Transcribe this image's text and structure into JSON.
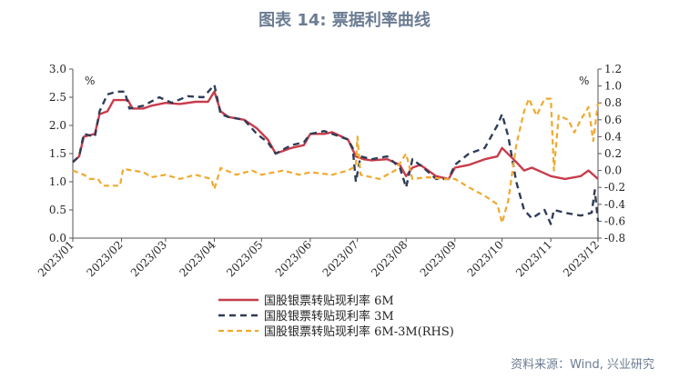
{
  "title": "图表 14: 票据利率曲线",
  "source": "资料来源：Wind, 兴业研究",
  "colors": {
    "m6": "#c83c4b",
    "m3": "#2f3d57",
    "spread": "#f0a92e",
    "axis": "#555555"
  },
  "chart_data": {
    "type": "line",
    "title": "图表 14: 票据利率曲线",
    "left_axis": {
      "unit_label": "%",
      "ylim": [
        0.0,
        3.0
      ],
      "ticks": [
        "0.0",
        "0.5",
        "1.0",
        "1.5",
        "2.0",
        "2.5",
        "3.0"
      ]
    },
    "right_axis": {
      "unit_label": "%",
      "ylim": [
        -0.8,
        1.2
      ],
      "ticks": [
        "-0.8",
        "-0.6",
        "-0.4",
        "-0.2",
        "0.0",
        "0.2",
        "0.4",
        "0.6",
        "0.8",
        "1.0",
        "1.2"
      ]
    },
    "x_ticks": [
      "2023/01",
      "2023/02",
      "2023/03",
      "2023/04",
      "2023/05",
      "2023/06",
      "2023/07",
      "2023/08",
      "2023/09",
      "2023/10",
      "2023/11",
      "2023/12"
    ],
    "x_range": [
      "2023/01/01",
      "2023/12/01"
    ],
    "grid": false,
    "legend_position": "bottom",
    "series": [
      {
        "name": "国股银票转贴现利率 6M",
        "axis": "left",
        "style": "solid",
        "points": [
          [
            "2023/01/01",
            1.35
          ],
          [
            "2023/01/05",
            1.45
          ],
          [
            "2023/01/08",
            1.8
          ],
          [
            "2023/01/15",
            1.85
          ],
          [
            "2023/01/18",
            2.2
          ],
          [
            "2023/01/23",
            2.25
          ],
          [
            "2023/01/27",
            2.45
          ],
          [
            "2023/02/05",
            2.45
          ],
          [
            "2023/02/08",
            2.3
          ],
          [
            "2023/02/15",
            2.3
          ],
          [
            "2023/02/20",
            2.35
          ],
          [
            "2023/03/01",
            2.4
          ],
          [
            "2023/03/10",
            2.38
          ],
          [
            "2023/03/20",
            2.42
          ],
          [
            "2023/03/28",
            2.42
          ],
          [
            "2023/04/01",
            2.6
          ],
          [
            "2023/04/05",
            2.25
          ],
          [
            "2023/04/10",
            2.15
          ],
          [
            "2023/04/20",
            2.1
          ],
          [
            "2023/04/28",
            1.95
          ],
          [
            "2023/05/05",
            1.75
          ],
          [
            "2023/05/10",
            1.5
          ],
          [
            "2023/05/20",
            1.6
          ],
          [
            "2023/05/28",
            1.65
          ],
          [
            "2023/06/01",
            1.85
          ],
          [
            "2023/06/10",
            1.85
          ],
          [
            "2023/06/15",
            1.88
          ],
          [
            "2023/06/25",
            1.75
          ],
          [
            "2023/06/30",
            1.45
          ],
          [
            "2023/07/05",
            1.4
          ],
          [
            "2023/07/10",
            1.38
          ],
          [
            "2023/07/20",
            1.4
          ],
          [
            "2023/07/28",
            1.3
          ],
          [
            "2023/08/01",
            1.1
          ],
          [
            "2023/08/05",
            1.25
          ],
          [
            "2023/08/10",
            1.3
          ],
          [
            "2023/08/20",
            1.1
          ],
          [
            "2023/08/28",
            1.05
          ],
          [
            "2023/09/01",
            1.25
          ],
          [
            "2023/09/10",
            1.3
          ],
          [
            "2023/09/20",
            1.4
          ],
          [
            "2023/09/28",
            1.45
          ],
          [
            "2023/10/01",
            1.6
          ],
          [
            "2023/10/10",
            1.35
          ],
          [
            "2023/10/15",
            1.2
          ],
          [
            "2023/10/20",
            1.25
          ],
          [
            "2023/10/28",
            1.15
          ],
          [
            "2023/11/01",
            1.1
          ],
          [
            "2023/11/10",
            1.05
          ],
          [
            "2023/11/20",
            1.1
          ],
          [
            "2023/11/25",
            1.2
          ],
          [
            "2023/12/01",
            1.05
          ]
        ]
      },
      {
        "name": "国股银票转贴现利率 3M",
        "axis": "left",
        "style": "dashed",
        "points": [
          [
            "2023/01/01",
            1.35
          ],
          [
            "2023/01/05",
            1.45
          ],
          [
            "2023/01/08",
            1.85
          ],
          [
            "2023/01/15",
            1.8
          ],
          [
            "2023/01/18",
            2.25
          ],
          [
            "2023/01/23",
            2.55
          ],
          [
            "2023/01/29",
            2.6
          ],
          [
            "2023/02/03",
            2.6
          ],
          [
            "2023/02/06",
            2.3
          ],
          [
            "2023/02/15",
            2.35
          ],
          [
            "2023/02/25",
            2.5
          ],
          [
            "2023/03/05",
            2.4
          ],
          [
            "2023/03/15",
            2.52
          ],
          [
            "2023/03/25",
            2.5
          ],
          [
            "2023/04/01",
            2.72
          ],
          [
            "2023/04/05",
            2.2
          ],
          [
            "2023/04/10",
            2.15
          ],
          [
            "2023/04/20",
            2.1
          ],
          [
            "2023/04/28",
            1.85
          ],
          [
            "2023/05/05",
            1.7
          ],
          [
            "2023/05/10",
            1.5
          ],
          [
            "2023/05/20",
            1.65
          ],
          [
            "2023/05/28",
            1.7
          ],
          [
            "2023/06/01",
            1.85
          ],
          [
            "2023/06/10",
            1.9
          ],
          [
            "2023/06/15",
            1.85
          ],
          [
            "2023/06/25",
            1.75
          ],
          [
            "2023/06/28",
            1.6
          ],
          [
            "2023/06/30",
            1.0
          ],
          [
            "2023/07/03",
            1.45
          ],
          [
            "2023/07/10",
            1.4
          ],
          [
            "2023/07/20",
            1.45
          ],
          [
            "2023/07/28",
            1.25
          ],
          [
            "2023/08/01",
            0.9
          ],
          [
            "2023/08/05",
            1.4
          ],
          [
            "2023/08/12",
            1.25
          ],
          [
            "2023/08/20",
            1.05
          ],
          [
            "2023/08/28",
            1.05
          ],
          [
            "2023/09/01",
            1.3
          ],
          [
            "2023/09/10",
            1.5
          ],
          [
            "2023/09/20",
            1.6
          ],
          [
            "2023/09/28",
            2.0
          ],
          [
            "2023/10/01",
            2.2
          ],
          [
            "2023/10/05",
            1.8
          ],
          [
            "2023/10/10",
            1.0
          ],
          [
            "2023/10/15",
            0.5
          ],
          [
            "2023/10/20",
            0.35
          ],
          [
            "2023/10/28",
            0.5
          ],
          [
            "2023/11/01",
            0.25
          ],
          [
            "2023/11/03",
            0.5
          ],
          [
            "2023/11/10",
            0.45
          ],
          [
            "2023/11/20",
            0.4
          ],
          [
            "2023/11/27",
            0.45
          ],
          [
            "2023/11/29",
            0.85
          ],
          [
            "2023/12/01",
            0.3
          ]
        ]
      },
      {
        "name": "国股银票转贴现利率 6M-3M(RHS)",
        "axis": "right",
        "style": "dashed",
        "points": [
          [
            "2023/01/01",
            0.0
          ],
          [
            "2023/01/08",
            -0.05
          ],
          [
            "2023/01/12",
            -0.1
          ],
          [
            "2023/01/17",
            -0.1
          ],
          [
            "2023/01/20",
            -0.18
          ],
          [
            "2023/01/31",
            -0.18
          ],
          [
            "2023/02/02",
            0.02
          ],
          [
            "2023/02/08",
            0.0
          ],
          [
            "2023/02/15",
            -0.02
          ],
          [
            "2023/02/20",
            -0.08
          ],
          [
            "2023/03/01",
            -0.05
          ],
          [
            "2023/03/10",
            -0.1
          ],
          [
            "2023/03/20",
            -0.05
          ],
          [
            "2023/03/30",
            -0.1
          ],
          [
            "2023/04/01",
            -0.22
          ],
          [
            "2023/04/05",
            0.03
          ],
          [
            "2023/04/15",
            -0.05
          ],
          [
            "2023/04/25",
            0.0
          ],
          [
            "2023/05/01",
            -0.05
          ],
          [
            "2023/05/15",
            0.0
          ],
          [
            "2023/05/25",
            -0.05
          ],
          [
            "2023/06/01",
            -0.02
          ],
          [
            "2023/06/15",
            -0.05
          ],
          [
            "2023/06/25",
            0.0
          ],
          [
            "2023/06/30",
            0.05
          ],
          [
            "2023/07/01",
            0.4
          ],
          [
            "2023/07/03",
            -0.05
          ],
          [
            "2023/07/15",
            -0.1
          ],
          [
            "2023/07/25",
            0.0
          ],
          [
            "2023/08/01",
            0.2
          ],
          [
            "2023/08/05",
            -0.1
          ],
          [
            "2023/08/15",
            -0.08
          ],
          [
            "2023/08/25",
            -0.1
          ],
          [
            "2023/09/01",
            -0.1
          ],
          [
            "2023/09/10",
            -0.2
          ],
          [
            "2023/09/20",
            -0.3
          ],
          [
            "2023/09/28",
            -0.4
          ],
          [
            "2023/10/01",
            -0.62
          ],
          [
            "2023/10/05",
            -0.35
          ],
          [
            "2023/10/10",
            0.3
          ],
          [
            "2023/10/15",
            0.7
          ],
          [
            "2023/10/18",
            0.85
          ],
          [
            "2023/10/23",
            0.65
          ],
          [
            "2023/10/28",
            0.85
          ],
          [
            "2023/11/01",
            0.85
          ],
          [
            "2023/11/03",
            0.0
          ],
          [
            "2023/11/06",
            0.65
          ],
          [
            "2023/11/12",
            0.6
          ],
          [
            "2023/11/16",
            0.45
          ],
          [
            "2023/11/20",
            0.6
          ],
          [
            "2023/11/25",
            0.75
          ],
          [
            "2023/11/28",
            0.35
          ],
          [
            "2023/12/01",
            0.8
          ]
        ]
      }
    ]
  }
}
